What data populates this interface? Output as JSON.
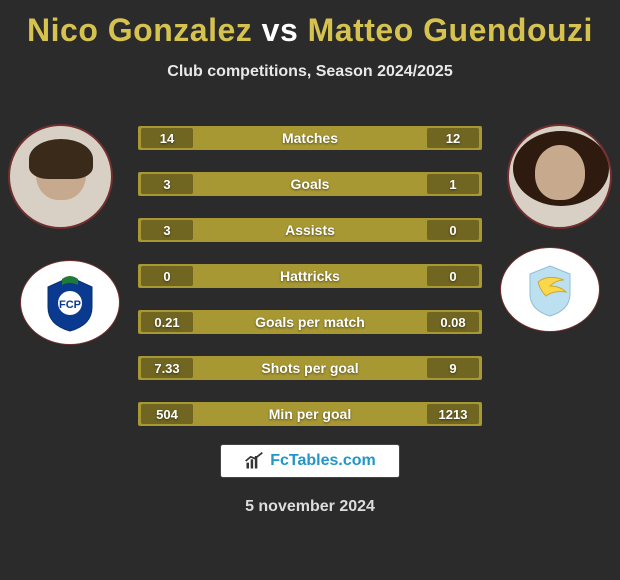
{
  "title": {
    "p1": "Nico Gonzalez",
    "vs": "vs",
    "p2": "Matteo Guendouzi",
    "p1_color": "#d6c24f",
    "p2_color": "#d6c24f",
    "vs_color": "#ffffff"
  },
  "subtitle": "Club competitions, Season 2024/2025",
  "row_bg": "#a89833",
  "val_bg": "#706621",
  "text_color": "#ffffff",
  "rows": [
    {
      "label": "Matches",
      "left": "14",
      "right": "12"
    },
    {
      "label": "Goals",
      "left": "3",
      "right": "1"
    },
    {
      "label": "Assists",
      "left": "3",
      "right": "0"
    },
    {
      "label": "Hattricks",
      "left": "0",
      "right": "0"
    },
    {
      "label": "Goals per match",
      "left": "0.21",
      "right": "0.08"
    },
    {
      "label": "Shots per goal",
      "left": "7.33",
      "right": "9"
    },
    {
      "label": "Min per goal",
      "left": "504",
      "right": "1213"
    }
  ],
  "logo_text": "FcTables.com",
  "date": "5 november 2024",
  "crest_left": {
    "bg": "#0a3a8f",
    "name": "fc-porto"
  },
  "crest_right": {
    "bg": "#bde0f0",
    "accent": "#fbd84a",
    "name": "ss-lazio"
  }
}
